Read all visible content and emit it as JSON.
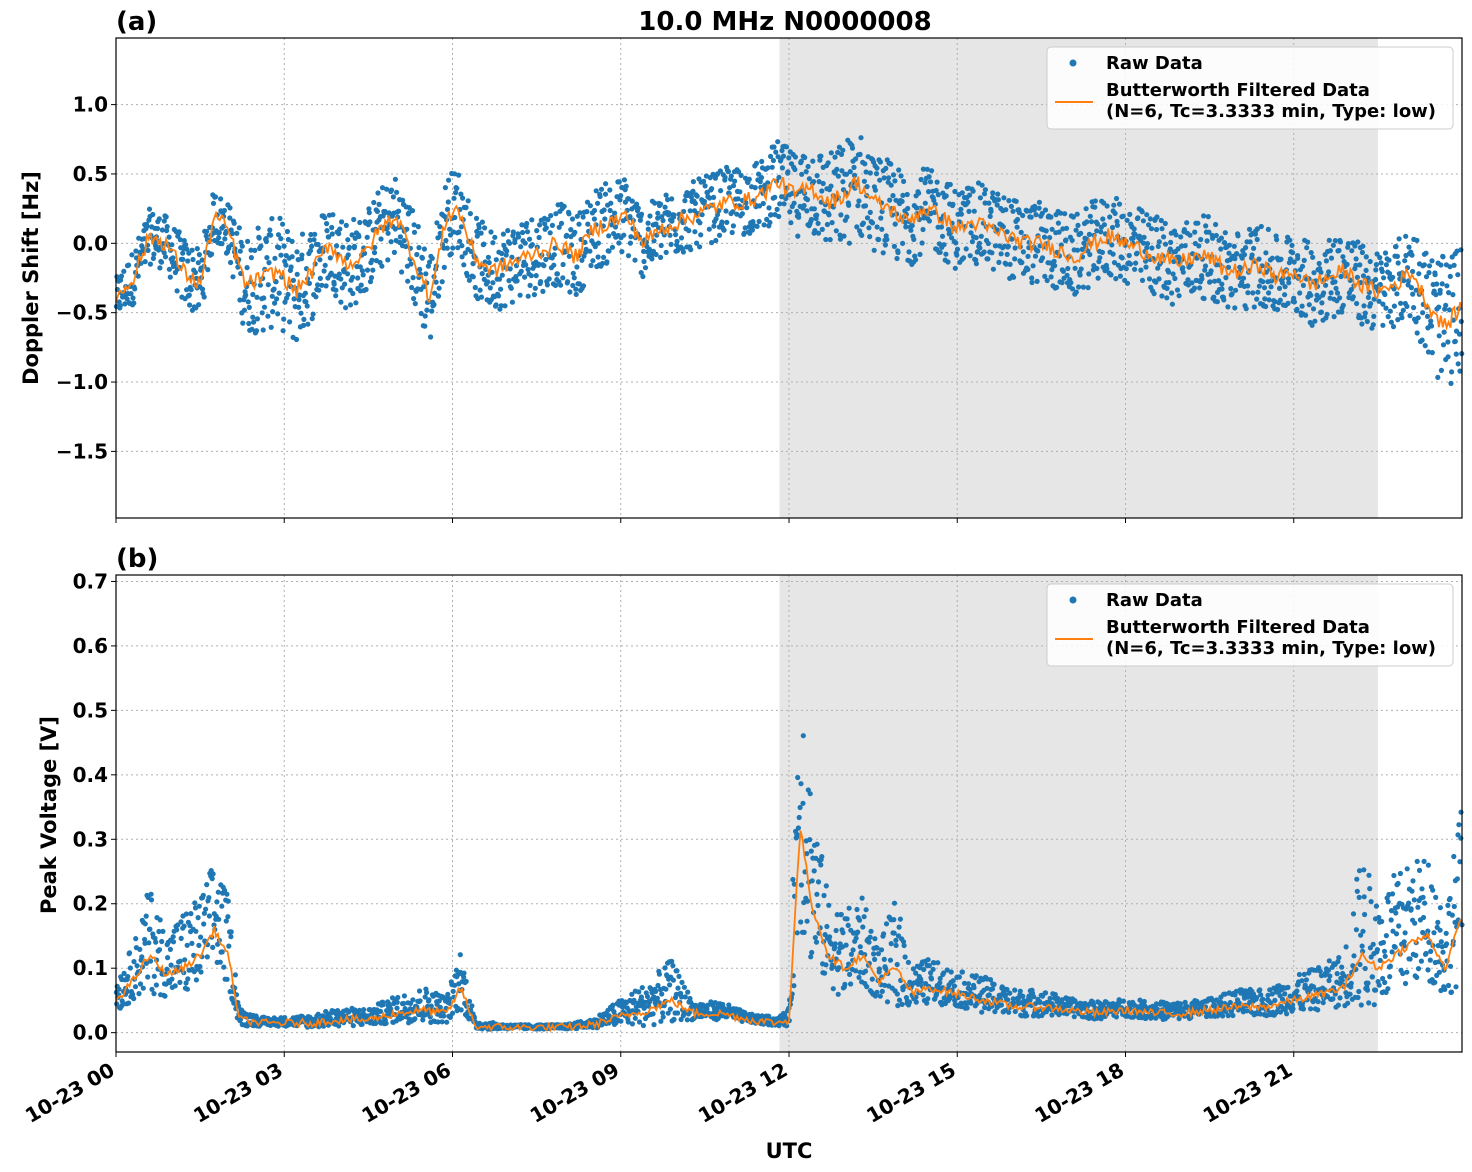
{
  "figure_title": "10.0 MHz N0000008",
  "chart_data": [
    {
      "type": "scatter",
      "panel_label": "(a)",
      "title": "10.0 MHz N0000008",
      "xlabel": "",
      "ylabel": "Doppler Shift [Hz]",
      "xlim_hours": [
        0,
        24
      ],
      "ylim": [
        -1.98,
        1.48
      ],
      "yticks": [
        1.0,
        0.5,
        0.0,
        -0.5,
        -1.0,
        -1.5
      ],
      "ytick_labels": [
        "1.0",
        "0.5",
        "0.0",
        "−0.5",
        "−1.0",
        "−1.5"
      ],
      "grid": true,
      "shaded_region_hours": [
        11.83,
        22.5
      ],
      "legend_placement": "top-right",
      "series": [
        {
          "name": "Raw Data",
          "kind": "scatter",
          "color": "#1f77b4",
          "x_hours": [
            0,
            0.3,
            0.6,
            0.9,
            1.2,
            1.5,
            1.75,
            2.0,
            2.3,
            2.6,
            2.9,
            3.2,
            3.5,
            3.8,
            4.1,
            4.4,
            4.7,
            5.0,
            5.3,
            5.6,
            5.9,
            6.1,
            6.4,
            6.7,
            7.0,
            7.3,
            7.6,
            7.9,
            8.2,
            8.5,
            8.8,
            9.1,
            9.4,
            9.7,
            10.0,
            10.3,
            10.6,
            10.9,
            11.2,
            11.5,
            11.8,
            12.1,
            12.4,
            12.7,
            13.0,
            13.2,
            13.5,
            13.8,
            14.1,
            14.4,
            14.7,
            15.0,
            15.3,
            15.6,
            15.9,
            16.2,
            16.5,
            16.8,
            17.1,
            17.4,
            17.7,
            18.0,
            18.3,
            18.6,
            18.9,
            19.2,
            19.5,
            19.8,
            20.1,
            20.4,
            20.7,
            21.0,
            21.3,
            21.6,
            21.9,
            22.2,
            22.5,
            22.8,
            23.1,
            23.4,
            23.7,
            24.0
          ],
          "y": [
            -0.4,
            -0.25,
            0.05,
            0.0,
            -0.2,
            -0.3,
            0.2,
            0.1,
            -0.3,
            -0.25,
            -0.2,
            -0.35,
            -0.2,
            0.0,
            -0.15,
            -0.1,
            0.1,
            0.2,
            -0.1,
            -0.4,
            0.2,
            0.25,
            -0.1,
            -0.2,
            -0.15,
            -0.1,
            -0.05,
            0.0,
            -0.1,
            0.1,
            0.15,
            0.2,
            0.0,
            0.1,
            0.15,
            0.2,
            0.25,
            0.3,
            0.3,
            0.35,
            0.45,
            0.35,
            0.4,
            0.3,
            0.35,
            0.45,
            0.3,
            0.25,
            0.15,
            0.25,
            0.2,
            0.1,
            0.15,
            0.1,
            0.05,
            0.0,
            0.0,
            -0.05,
            -0.1,
            0.0,
            0.05,
            0.0,
            -0.05,
            -0.1,
            -0.15,
            -0.1,
            -0.1,
            -0.2,
            -0.2,
            -0.15,
            -0.25,
            -0.2,
            -0.3,
            -0.25,
            -0.2,
            -0.3,
            -0.35,
            -0.3,
            -0.2,
            -0.45,
            -0.6,
            -0.45
          ],
          "spread": [
            0.15,
            0.2,
            0.2,
            0.2,
            0.25,
            0.25,
            0.2,
            0.2,
            0.35,
            0.4,
            0.4,
            0.4,
            0.35,
            0.3,
            0.35,
            0.3,
            0.3,
            0.3,
            0.35,
            0.35,
            0.3,
            0.3,
            0.3,
            0.3,
            0.3,
            0.3,
            0.3,
            0.3,
            0.3,
            0.3,
            0.3,
            0.3,
            0.25,
            0.25,
            0.25,
            0.25,
            0.25,
            0.25,
            0.25,
            0.25,
            0.3,
            0.3,
            0.35,
            0.35,
            0.4,
            0.4,
            0.35,
            0.35,
            0.35,
            0.3,
            0.3,
            0.3,
            0.3,
            0.3,
            0.3,
            0.3,
            0.3,
            0.3,
            0.3,
            0.3,
            0.3,
            0.3,
            0.3,
            0.3,
            0.3,
            0.3,
            0.3,
            0.3,
            0.3,
            0.3,
            0.3,
            0.3,
            0.3,
            0.3,
            0.3,
            0.3,
            0.3,
            0.3,
            0.35,
            0.4,
            0.5,
            0.45
          ]
        },
        {
          "name": "Butterworth Filtered Data\n(N=6, Tc=3.3333 min, Type: low)",
          "kind": "line",
          "color": "#ff7f0e",
          "x_hours": [
            0,
            0.3,
            0.6,
            0.9,
            1.2,
            1.5,
            1.75,
            2.0,
            2.3,
            2.6,
            2.9,
            3.2,
            3.5,
            3.8,
            4.1,
            4.4,
            4.7,
            5.0,
            5.3,
            5.6,
            5.9,
            6.1,
            6.4,
            6.7,
            7.0,
            7.3,
            7.6,
            7.9,
            8.2,
            8.5,
            8.8,
            9.1,
            9.4,
            9.7,
            10.0,
            10.3,
            10.6,
            10.9,
            11.2,
            11.5,
            11.8,
            12.1,
            12.4,
            12.7,
            13.0,
            13.2,
            13.5,
            13.8,
            14.1,
            14.4,
            14.7,
            15.0,
            15.3,
            15.6,
            15.9,
            16.2,
            16.5,
            16.8,
            17.1,
            17.4,
            17.7,
            18.0,
            18.3,
            18.6,
            18.9,
            19.2,
            19.5,
            19.8,
            20.1,
            20.4,
            20.7,
            21.0,
            21.3,
            21.6,
            21.9,
            22.2,
            22.5,
            22.8,
            23.1,
            23.4,
            23.7,
            24.0
          ],
          "y": [
            -0.4,
            -0.25,
            0.05,
            0.0,
            -0.2,
            -0.3,
            0.2,
            0.1,
            -0.3,
            -0.25,
            -0.2,
            -0.35,
            -0.2,
            0.0,
            -0.15,
            -0.1,
            0.1,
            0.2,
            -0.1,
            -0.4,
            0.2,
            0.25,
            -0.1,
            -0.2,
            -0.15,
            -0.1,
            -0.05,
            0.0,
            -0.1,
            0.1,
            0.15,
            0.2,
            0.0,
            0.1,
            0.15,
            0.2,
            0.25,
            0.3,
            0.3,
            0.35,
            0.45,
            0.35,
            0.4,
            0.3,
            0.35,
            0.45,
            0.3,
            0.25,
            0.15,
            0.25,
            0.2,
            0.1,
            0.15,
            0.1,
            0.05,
            0.0,
            0.0,
            -0.05,
            -0.1,
            0.0,
            0.05,
            0.0,
            -0.05,
            -0.1,
            -0.15,
            -0.1,
            -0.1,
            -0.2,
            -0.2,
            -0.15,
            -0.25,
            -0.2,
            -0.3,
            -0.25,
            -0.2,
            -0.3,
            -0.35,
            -0.3,
            -0.2,
            -0.45,
            -0.6,
            -0.45
          ]
        }
      ]
    },
    {
      "type": "scatter",
      "panel_label": "(b)",
      "xlabel": "UTC",
      "ylabel": "Peak Voltage [V]",
      "xlim_hours": [
        0,
        24
      ],
      "ylim": [
        -0.03,
        0.71
      ],
      "yticks": [
        0.0,
        0.1,
        0.2,
        0.3,
        0.4,
        0.5,
        0.6,
        0.7
      ],
      "ytick_labels": [
        "0.0",
        "0.1",
        "0.2",
        "0.3",
        "0.4",
        "0.5",
        "0.6",
        "0.7"
      ],
      "xticks_hours": [
        0,
        3,
        6,
        9,
        12,
        15,
        18,
        21
      ],
      "xtick_labels": [
        "10-23 00",
        "10-23 03",
        "10-23 06",
        "10-23 09",
        "10-23 12",
        "10-23 15",
        "10-23 18",
        "10-23 21"
      ],
      "grid": true,
      "shaded_region_hours": [
        11.83,
        22.5
      ],
      "legend_placement": "top-right",
      "series": [
        {
          "name": "Raw Data",
          "kind": "scatter",
          "color": "#1f77b4",
          "x_hours": [
            0,
            0.3,
            0.6,
            0.9,
            1.2,
            1.5,
            1.75,
            2.0,
            2.2,
            2.6,
            3.0,
            3.5,
            4.0,
            4.5,
            5.0,
            5.5,
            5.9,
            6.15,
            6.4,
            7.0,
            7.5,
            8.0,
            8.5,
            9.0,
            9.5,
            9.9,
            10.3,
            10.8,
            11.3,
            11.8,
            12.0,
            12.2,
            12.4,
            12.7,
            13.0,
            13.3,
            13.6,
            13.9,
            14.2,
            14.5,
            15.0,
            15.5,
            16.0,
            16.5,
            17.0,
            17.5,
            18.0,
            18.5,
            19.0,
            19.5,
            20.0,
            20.5,
            21.0,
            21.5,
            21.9,
            22.2,
            22.5,
            22.8,
            23.1,
            23.4,
            23.7,
            24.0
          ],
          "y": [
            0.05,
            0.08,
            0.12,
            0.09,
            0.1,
            0.12,
            0.16,
            0.12,
            0.02,
            0.015,
            0.015,
            0.015,
            0.02,
            0.02,
            0.03,
            0.035,
            0.03,
            0.07,
            0.01,
            0.008,
            0.008,
            0.008,
            0.012,
            0.025,
            0.035,
            0.05,
            0.03,
            0.03,
            0.02,
            0.015,
            0.02,
            0.32,
            0.2,
            0.12,
            0.1,
            0.12,
            0.08,
            0.1,
            0.06,
            0.07,
            0.06,
            0.05,
            0.04,
            0.04,
            0.035,
            0.03,
            0.035,
            0.03,
            0.03,
            0.035,
            0.04,
            0.04,
            0.05,
            0.06,
            0.07,
            0.12,
            0.1,
            0.12,
            0.14,
            0.15,
            0.1,
            0.18
          ],
          "spread": [
            0.04,
            0.06,
            0.12,
            0.07,
            0.1,
            0.1,
            0.12,
            0.1,
            0.02,
            0.01,
            0.01,
            0.015,
            0.02,
            0.02,
            0.03,
            0.04,
            0.03,
            0.07,
            0.01,
            0.005,
            0.005,
            0.005,
            0.01,
            0.03,
            0.05,
            0.07,
            0.02,
            0.02,
            0.01,
            0.01,
            0.02,
            0.34,
            0.2,
            0.1,
            0.1,
            0.1,
            0.06,
            0.12,
            0.05,
            0.05,
            0.04,
            0.04,
            0.03,
            0.03,
            0.02,
            0.02,
            0.02,
            0.02,
            0.02,
            0.02,
            0.03,
            0.03,
            0.04,
            0.05,
            0.06,
            0.18,
            0.12,
            0.14,
            0.14,
            0.14,
            0.1,
            0.2
          ]
        },
        {
          "name": "Butterworth Filtered Data\n(N=6, Tc=3.3333 min, Type: low)",
          "kind": "line",
          "color": "#ff7f0e",
          "x_hours": [
            0,
            0.3,
            0.6,
            0.9,
            1.2,
            1.5,
            1.75,
            2.0,
            2.2,
            2.6,
            3.0,
            3.5,
            4.0,
            4.5,
            5.0,
            5.5,
            5.9,
            6.15,
            6.4,
            7.0,
            7.5,
            8.0,
            8.5,
            9.0,
            9.5,
            9.9,
            10.3,
            10.8,
            11.3,
            11.8,
            12.0,
            12.2,
            12.4,
            12.7,
            13.0,
            13.3,
            13.6,
            13.9,
            14.2,
            14.5,
            15.0,
            15.5,
            16.0,
            16.5,
            17.0,
            17.5,
            18.0,
            18.5,
            19.0,
            19.5,
            20.0,
            20.5,
            21.0,
            21.5,
            21.9,
            22.2,
            22.5,
            22.8,
            23.1,
            23.4,
            23.7,
            24.0
          ],
          "y": [
            0.05,
            0.08,
            0.12,
            0.09,
            0.1,
            0.12,
            0.16,
            0.12,
            0.02,
            0.015,
            0.015,
            0.015,
            0.02,
            0.02,
            0.03,
            0.035,
            0.03,
            0.07,
            0.01,
            0.008,
            0.008,
            0.008,
            0.012,
            0.025,
            0.035,
            0.05,
            0.03,
            0.03,
            0.02,
            0.015,
            0.02,
            0.32,
            0.2,
            0.12,
            0.1,
            0.12,
            0.08,
            0.1,
            0.06,
            0.07,
            0.06,
            0.05,
            0.04,
            0.04,
            0.035,
            0.03,
            0.035,
            0.03,
            0.03,
            0.035,
            0.04,
            0.04,
            0.05,
            0.06,
            0.07,
            0.12,
            0.1,
            0.12,
            0.14,
            0.15,
            0.1,
            0.18
          ]
        }
      ]
    }
  ]
}
